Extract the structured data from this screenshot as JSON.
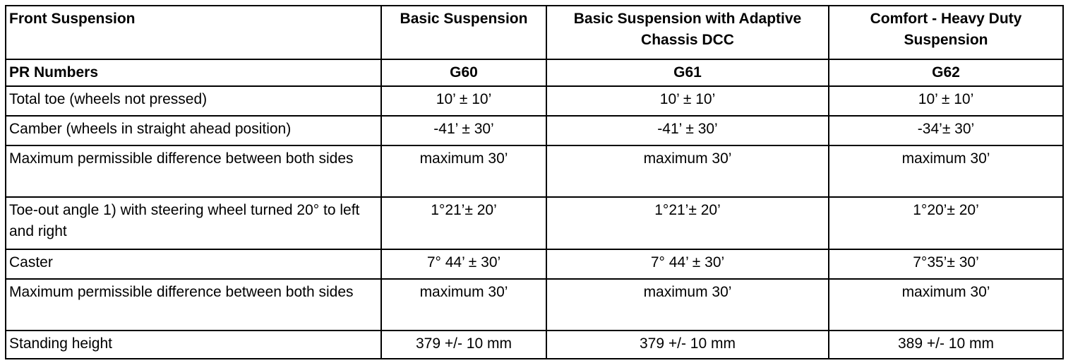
{
  "table": {
    "header": [
      "Front Suspension",
      "Basic Suspension",
      "Basic Suspension with Adaptive Chassis DCC",
      "Comfort - Heavy Duty Suspension"
    ],
    "rows": [
      [
        "PR Numbers",
        "G60",
        "G61",
        "G62"
      ],
      [
        "Total toe (wheels not pressed)",
        "10’ ± 10’",
        "10’ ± 10’",
        "10’ ± 10’"
      ],
      [
        "Camber (wheels in straight ahead position)",
        "-41’ ± 30’",
        "-41’ ± 30’",
        "-34’± 30’"
      ],
      [
        "Maximum permissible difference between both sides",
        "maximum 30’",
        "maximum 30’",
        "maximum 30’"
      ],
      [
        "Toe-out angle 1) with steering wheel turned 20° to left and right",
        "1°21’± 20’",
        "1°21’± 20’",
        "1°20’± 20’"
      ],
      [
        "Caster",
        "7° 44’ ± 30’",
        "7° 44’ ± 30’",
        "7°35’± 30’"
      ],
      [
        "Maximum permissible difference between both sides",
        "maximum 30’",
        "maximum 30’",
        "maximum 30’"
      ],
      [
        "Standing height",
        "379 +/- 10 mm",
        "379 +/- 10 mm",
        "389 +/- 10 mm"
      ]
    ]
  }
}
